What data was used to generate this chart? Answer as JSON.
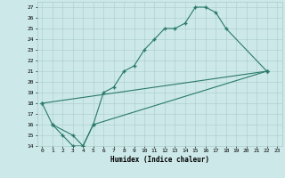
{
  "title": "",
  "xlabel": "Humidex (Indice chaleur)",
  "ylabel": "",
  "bg_color": "#cce8e8",
  "line_color": "#2a7a6a",
  "grid_color": "#aacccc",
  "xlim": [
    -0.5,
    23.5
  ],
  "ylim": [
    14,
    27.5
  ],
  "xticks": [
    0,
    1,
    2,
    3,
    4,
    5,
    6,
    7,
    8,
    9,
    10,
    11,
    12,
    13,
    14,
    15,
    16,
    17,
    18,
    19,
    20,
    21,
    22,
    23
  ],
  "yticks": [
    14,
    15,
    16,
    17,
    18,
    19,
    20,
    21,
    22,
    23,
    24,
    25,
    26,
    27
  ],
  "line1_x": [
    0,
    1,
    2,
    3,
    4,
    5,
    6,
    7,
    8,
    9,
    10,
    11,
    12,
    13,
    14,
    15,
    16,
    17,
    18,
    22
  ],
  "line1_y": [
    18,
    16,
    15,
    14,
    14,
    16,
    19,
    19.5,
    21,
    21.5,
    23,
    24,
    25,
    25,
    25.5,
    27,
    27,
    26.5,
    25,
    21
  ],
  "line2_x": [
    1,
    3,
    4,
    5,
    22
  ],
  "line2_y": [
    16,
    15,
    14,
    16,
    21
  ],
  "line3_x": [
    0,
    22
  ],
  "line3_y": [
    18,
    21
  ],
  "marker": "+",
  "marker_size": 3,
  "linewidth": 0.8,
  "xlabel_fontsize": 5.5,
  "tick_fontsize": 4.5
}
